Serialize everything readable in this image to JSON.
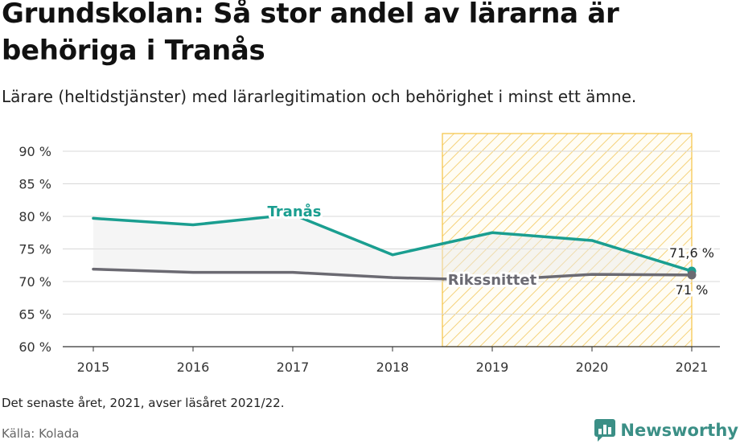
{
  "title": "Grundskolan: Så stor andel av lärarna är behöriga i Tranås",
  "subtitle": "Lärare (heltidstjänster) med lärarlegitimation och behörighet i minst ett ämne.",
  "note": "Det senaste året, 2021, avser läsåret 2021/22.",
  "source": "Källa: Kolada",
  "brand": "Newsworthy",
  "colors": {
    "tranas": "#1a9e90",
    "riks": "#6b6a72",
    "highlight": "#f5c342"
  },
  "chart_data": {
    "type": "line",
    "x": [
      2015,
      2016,
      2017,
      2018,
      2019,
      2020,
      2021
    ],
    "ylim": [
      60,
      90
    ],
    "yticks": [
      60,
      65,
      70,
      75,
      80,
      85,
      90
    ],
    "ytick_labels": [
      "60 %",
      "65 %",
      "70 %",
      "75 %",
      "80 %",
      "85 %",
      "90 %"
    ],
    "xtick_labels": [
      "2015",
      "2016",
      "2017",
      "2018",
      "2019",
      "2020",
      "2021"
    ],
    "highlight_range": [
      2018.5,
      2021
    ],
    "series": [
      {
        "name": "Tranås",
        "values": [
          79.7,
          78.7,
          80.3,
          74.1,
          77.5,
          76.3,
          71.6
        ],
        "end_label": "71,6 %"
      },
      {
        "name": "Rikssnittet",
        "values": [
          71.9,
          71.4,
          71.4,
          70.6,
          70.2,
          71.1,
          71.0
        ],
        "end_label": "71 %"
      }
    ]
  }
}
